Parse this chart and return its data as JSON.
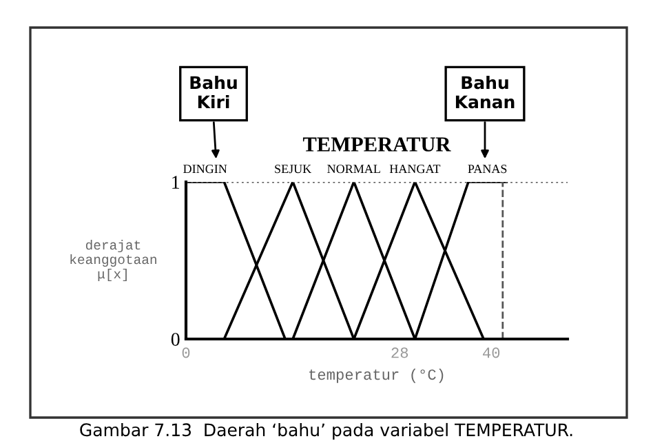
{
  "chart_data": {
    "type": "line",
    "title": "TEMPERATUR",
    "xlabel": "temperatur (°C)",
    "ylabel": "derajat\nkeanggotaan\nμ[x]",
    "series": [
      {
        "name": "DINGIN",
        "color": "#000000",
        "x": [
          0,
          5,
          13
        ],
        "values": [
          1,
          1,
          0
        ]
      },
      {
        "name": "SEJUK",
        "color": "#000000",
        "x": [
          5,
          14,
          22
        ],
        "values": [
          0,
          1,
          0
        ]
      },
      {
        "name": "NORMAL",
        "color": "#000000",
        "x": [
          14,
          22,
          30
        ],
        "values": [
          0,
          1,
          0
        ]
      },
      {
        "name": "HANGAT",
        "color": "#000000",
        "x": [
          22,
          30,
          39
        ],
        "values": [
          0,
          1,
          0
        ]
      },
      {
        "name": "PANAS",
        "color": "#000000",
        "x": [
          30,
          37,
          42
        ],
        "values": [
          0,
          1,
          1
        ]
      }
    ],
    "xlim": [
      0,
      50
    ],
    "ylim": [
      0,
      1
    ],
    "xticks": [
      0,
      28,
      40
    ],
    "yticks": [
      0,
      1
    ],
    "ref_lines": [
      {
        "axis": "y",
        "value": 1,
        "label": null,
        "line_style": "dotted",
        "color": "#555555"
      },
      {
        "axis": "x",
        "value": 41.5,
        "label": null,
        "line_style": "dashed",
        "color": "#555555"
      }
    ],
    "annotations": [
      "Bahu\nKiri",
      "Bahu\nKanan",
      "Gambar 7.13  Daerah ‘bahu’ pada variabel TEMPERATUR."
    ],
    "grid": false,
    "legend": "top",
    "marker": "none",
    "line_style": "solid"
  }
}
